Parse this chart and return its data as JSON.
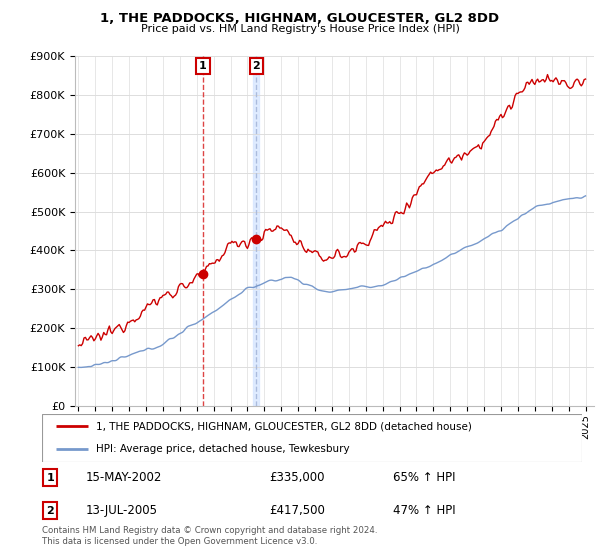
{
  "title": "1, THE PADDOCKS, HIGHNAM, GLOUCESTER, GL2 8DD",
  "subtitle": "Price paid vs. HM Land Registry's House Price Index (HPI)",
  "legend_line1": "1, THE PADDOCKS, HIGHNAM, GLOUCESTER, GL2 8DD (detached house)",
  "legend_line2": "HPI: Average price, detached house, Tewkesbury",
  "sale1_label": "1",
  "sale1_date": "15-MAY-2002",
  "sale1_price": "£335,000",
  "sale1_hpi": "65% ↑ HPI",
  "sale1_year": 2002.37,
  "sale1_price_val": 335000,
  "sale2_label": "2",
  "sale2_date": "13-JUL-2005",
  "sale2_price": "£417,500",
  "sale2_hpi": "47% ↑ HPI",
  "sale2_year": 2005.53,
  "sale2_price_val": 417500,
  "footer": "Contains HM Land Registry data © Crown copyright and database right 2024.\nThis data is licensed under the Open Government Licence v3.0.",
  "line_color_red": "#cc0000",
  "line_color_blue": "#7799cc",
  "marker_box_color": "#cc0000",
  "vline1_color": "#dd4444",
  "vline2_color": "#aabbdd",
  "shade_color": "#cce0ff",
  "ylim": [
    0,
    900000
  ],
  "yticks": [
    0,
    100000,
    200000,
    300000,
    400000,
    500000,
    600000,
    700000,
    800000,
    900000
  ],
  "xlim_start": 1994.8,
  "xlim_end": 2025.5,
  "background_color": "#ffffff"
}
